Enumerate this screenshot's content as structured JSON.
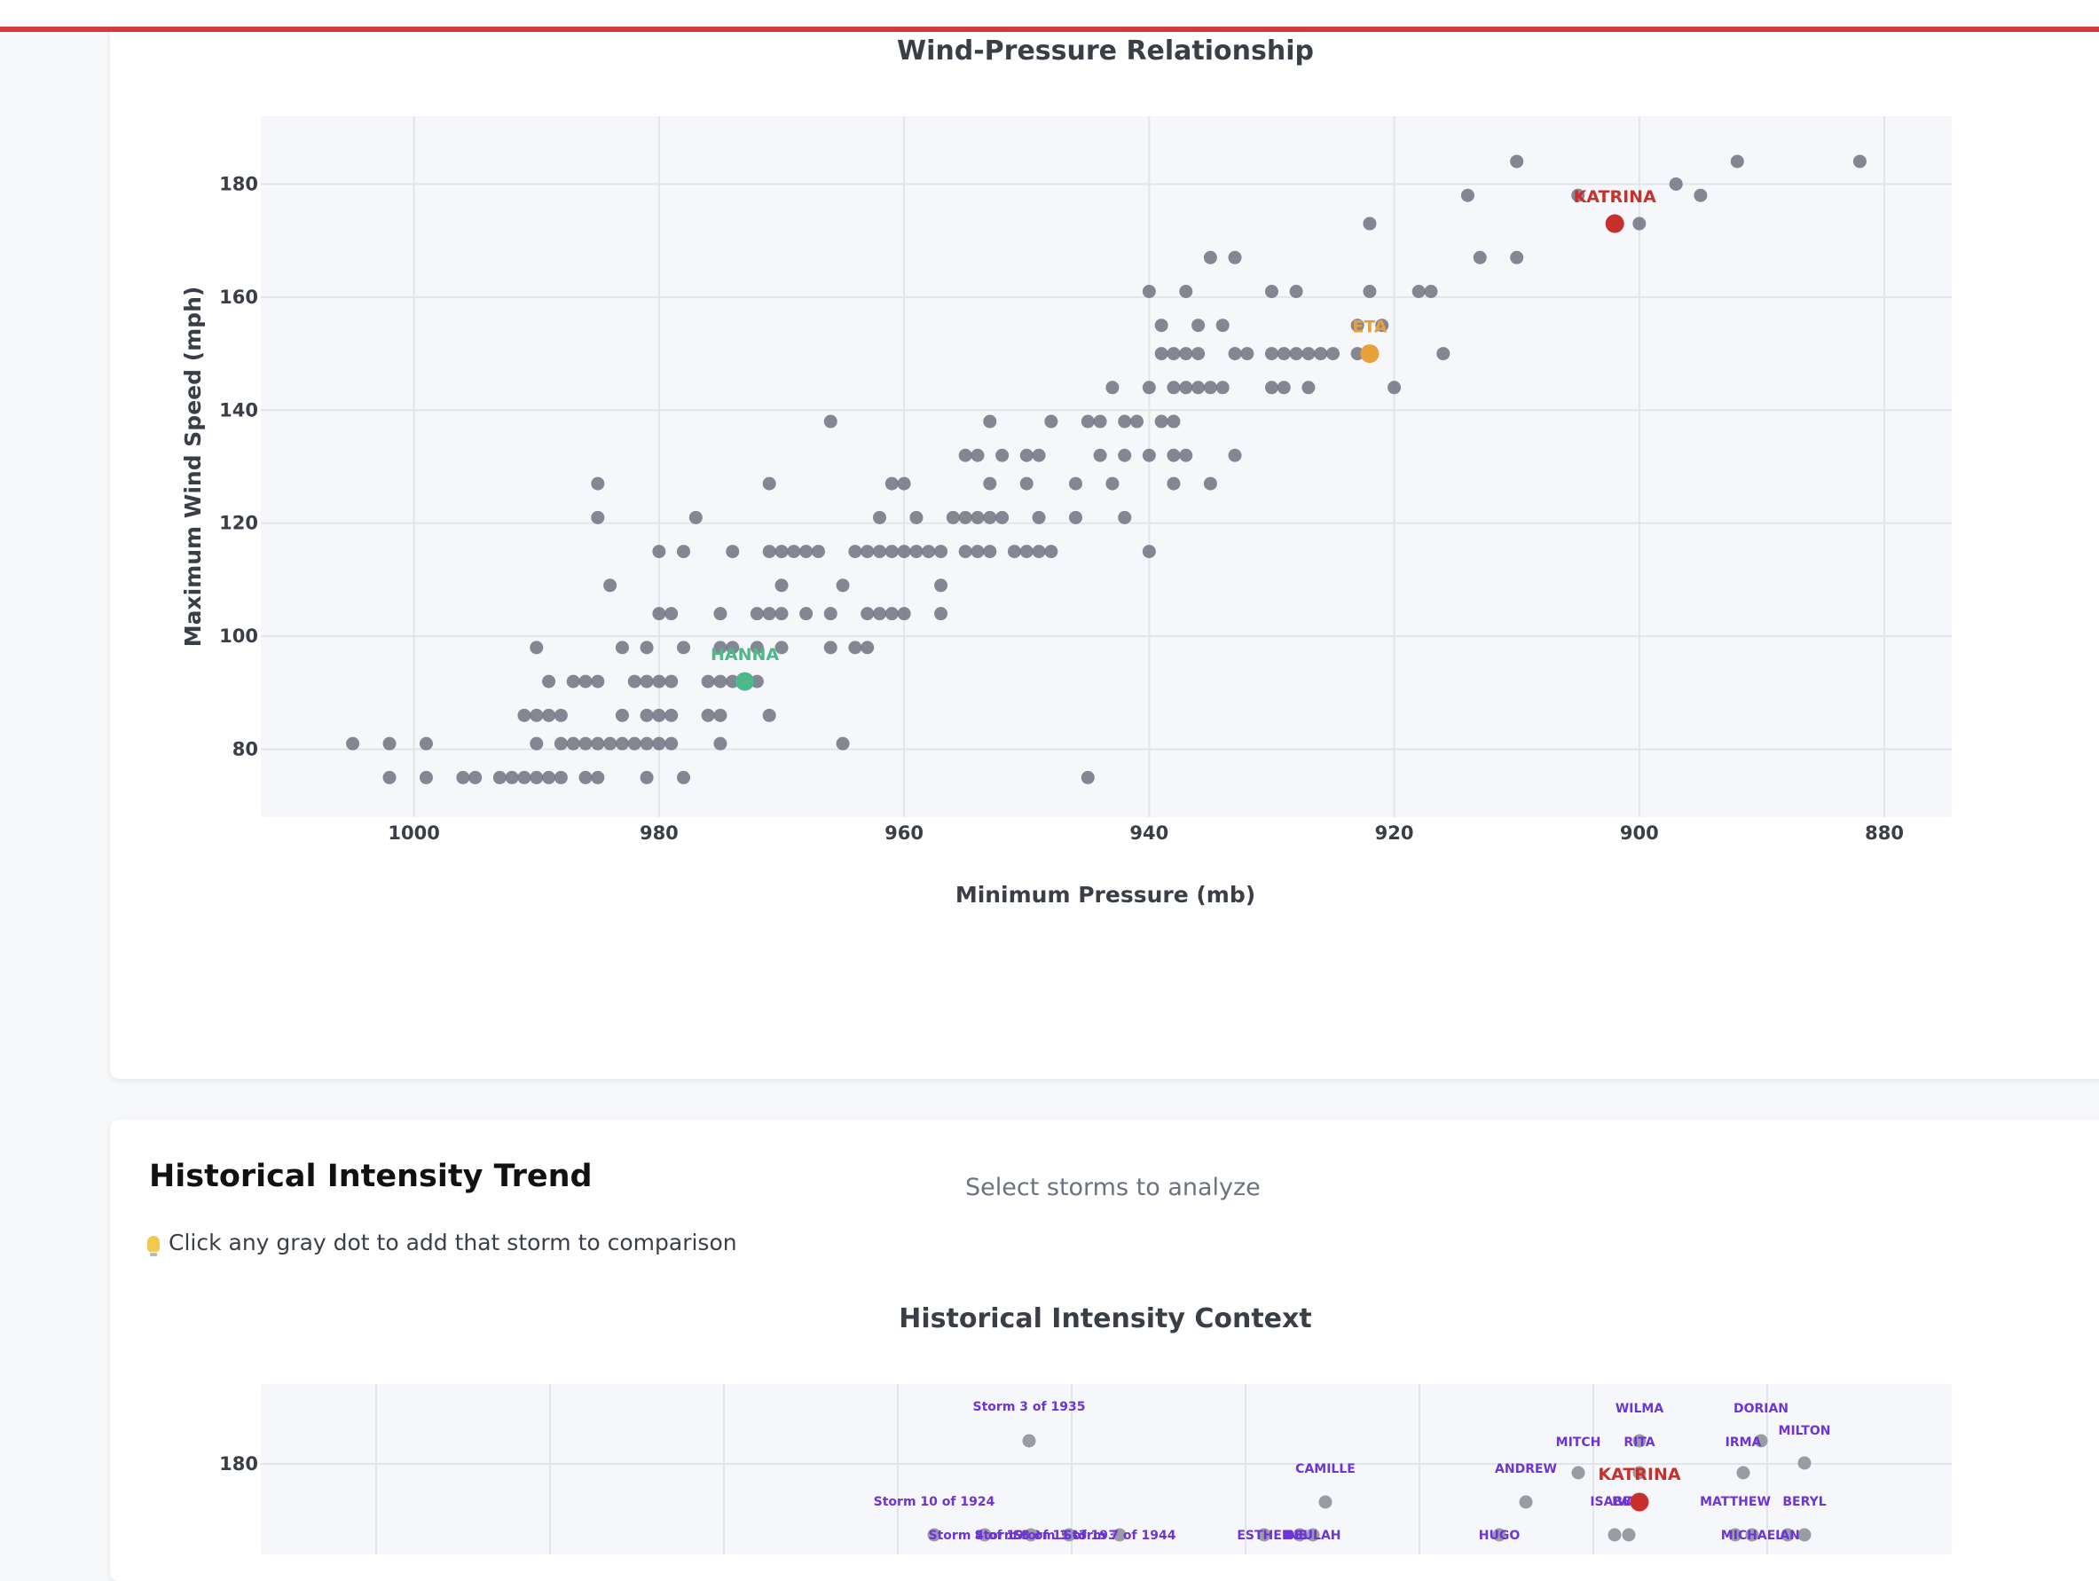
{
  "colors": {
    "accent_red": "#c9302c",
    "orange": "#e8a03a",
    "green": "#4db88a",
    "point": "#6e7280",
    "point_dense": "#3d4350",
    "purple": "#6d35d6"
  },
  "section_history": {
    "title": "Historical Intensity Trend",
    "hint": "Click any gray dot to add that storm to comparison",
    "hint_icon": "lightbulb-icon",
    "select_placeholder": "Select storms to analyze"
  },
  "chart_data": [
    {
      "type": "scatter",
      "title": "Wind-Pressure Relationship",
      "xlabel": "Minimum Pressure (mb)",
      "ylabel": "Maximum Wind Speed (mph)",
      "x_reversed": true,
      "xlim": [
        1012.5,
        874.5
      ],
      "ylim": [
        68,
        192
      ],
      "xticks": [
        1000,
        980,
        960,
        940,
        920,
        900,
        880
      ],
      "yticks": [
        80,
        100,
        120,
        140,
        160,
        180
      ],
      "highlighted": [
        {
          "name": "KATRINA",
          "x": 902,
          "y": 173,
          "color": "#c9302c"
        },
        {
          "name": "ETA",
          "x": 922,
          "y": 150,
          "color": "#e8a03a"
        },
        {
          "name": "HANNA",
          "x": 973,
          "y": 92,
          "color": "#4db88a"
        }
      ],
      "points": [
        [
          1005,
          81
        ],
        [
          1002,
          81
        ],
        [
          999,
          81
        ],
        [
          1002,
          75
        ],
        [
          999,
          75
        ],
        [
          996,
          75
        ],
        [
          995,
          75
        ],
        [
          993,
          75
        ],
        [
          992,
          75
        ],
        [
          991,
          75
        ],
        [
          990,
          75
        ],
        [
          989,
          75
        ],
        [
          988,
          75
        ],
        [
          986,
          75
        ],
        [
          985,
          75
        ],
        [
          981,
          75
        ],
        [
          978,
          75
        ],
        [
          945,
          75
        ],
        [
          990,
          81
        ],
        [
          988,
          81
        ],
        [
          987,
          81
        ],
        [
          986,
          81
        ],
        [
          985,
          81
        ],
        [
          984,
          81
        ],
        [
          983,
          81
        ],
        [
          982,
          81
        ],
        [
          981,
          81
        ],
        [
          980,
          81
        ],
        [
          979,
          81
        ],
        [
          975,
          81
        ],
        [
          965,
          81
        ],
        [
          991,
          86
        ],
        [
          990,
          86
        ],
        [
          989,
          86
        ],
        [
          988,
          86
        ],
        [
          983,
          86
        ],
        [
          981,
          86
        ],
        [
          980,
          86
        ],
        [
          979,
          86
        ],
        [
          976,
          86
        ],
        [
          975,
          86
        ],
        [
          971,
          86
        ],
        [
          989,
          92
        ],
        [
          987,
          92
        ],
        [
          986,
          92
        ],
        [
          985,
          92
        ],
        [
          982,
          92
        ],
        [
          981,
          92
        ],
        [
          980,
          92
        ],
        [
          979,
          92
        ],
        [
          976,
          92
        ],
        [
          975,
          92
        ],
        [
          974,
          92
        ],
        [
          972,
          92
        ],
        [
          990,
          98
        ],
        [
          983,
          98
        ],
        [
          981,
          98
        ],
        [
          978,
          98
        ],
        [
          975,
          98
        ],
        [
          974,
          98
        ],
        [
          972,
          98
        ],
        [
          970,
          98
        ],
        [
          966,
          98
        ],
        [
          964,
          98
        ],
        [
          963,
          98
        ],
        [
          980,
          104
        ],
        [
          979,
          104
        ],
        [
          975,
          104
        ],
        [
          972,
          104
        ],
        [
          971,
          104
        ],
        [
          970,
          104
        ],
        [
          968,
          104
        ],
        [
          966,
          104
        ],
        [
          963,
          104
        ],
        [
          962,
          104
        ],
        [
          961,
          104
        ],
        [
          960,
          104
        ],
        [
          957,
          104
        ],
        [
          984,
          109
        ],
        [
          970,
          109
        ],
        [
          965,
          109
        ],
        [
          957,
          109
        ],
        [
          980,
          115
        ],
        [
          978,
          115
        ],
        [
          974,
          115
        ],
        [
          971,
          115
        ],
        [
          970,
          115
        ],
        [
          969,
          115
        ],
        [
          968,
          115
        ],
        [
          967,
          115
        ],
        [
          964,
          115
        ],
        [
          963,
          115
        ],
        [
          962,
          115
        ],
        [
          961,
          115
        ],
        [
          960,
          115
        ],
        [
          959,
          115
        ],
        [
          958,
          115
        ],
        [
          957,
          115
        ],
        [
          955,
          115
        ],
        [
          954,
          115
        ],
        [
          953,
          115
        ],
        [
          951,
          115
        ],
        [
          950,
          115
        ],
        [
          949,
          115
        ],
        [
          948,
          115
        ],
        [
          940,
          115
        ],
        [
          985,
          121
        ],
        [
          977,
          121
        ],
        [
          962,
          121
        ],
        [
          959,
          121
        ],
        [
          956,
          121
        ],
        [
          955,
          121
        ],
        [
          954,
          121
        ],
        [
          953,
          121
        ],
        [
          952,
          121
        ],
        [
          949,
          121
        ],
        [
          946,
          121
        ],
        [
          942,
          121
        ],
        [
          985,
          127
        ],
        [
          971,
          127
        ],
        [
          961,
          127
        ],
        [
          960,
          127
        ],
        [
          953,
          127
        ],
        [
          950,
          127
        ],
        [
          946,
          127
        ],
        [
          943,
          127
        ],
        [
          938,
          127
        ],
        [
          935,
          127
        ],
        [
          955,
          132
        ],
        [
          954,
          132
        ],
        [
          952,
          132
        ],
        [
          950,
          132
        ],
        [
          949,
          132
        ],
        [
          944,
          132
        ],
        [
          942,
          132
        ],
        [
          940,
          132
        ],
        [
          938,
          132
        ],
        [
          937,
          132
        ],
        [
          933,
          132
        ],
        [
          966,
          138
        ],
        [
          953,
          138
        ],
        [
          948,
          138
        ],
        [
          945,
          138
        ],
        [
          944,
          138
        ],
        [
          942,
          138
        ],
        [
          941,
          138
        ],
        [
          939,
          138
        ],
        [
          938,
          138
        ],
        [
          943,
          144
        ],
        [
          940,
          144
        ],
        [
          938,
          144
        ],
        [
          937,
          144
        ],
        [
          936,
          144
        ],
        [
          935,
          144
        ],
        [
          934,
          144
        ],
        [
          930,
          144
        ],
        [
          929,
          144
        ],
        [
          927,
          144
        ],
        [
          920,
          144
        ],
        [
          939,
          150
        ],
        [
          938,
          150
        ],
        [
          937,
          150
        ],
        [
          936,
          150
        ],
        [
          933,
          150
        ],
        [
          932,
          150
        ],
        [
          930,
          150
        ],
        [
          929,
          150
        ],
        [
          928,
          150
        ],
        [
          927,
          150
        ],
        [
          926,
          150
        ],
        [
          925,
          150
        ],
        [
          923,
          150
        ],
        [
          922,
          150
        ],
        [
          916,
          150
        ],
        [
          939,
          155
        ],
        [
          936,
          155
        ],
        [
          934,
          155
        ],
        [
          923,
          155
        ],
        [
          921,
          155
        ],
        [
          940,
          161
        ],
        [
          937,
          161
        ],
        [
          930,
          161
        ],
        [
          928,
          161
        ],
        [
          922,
          161
        ],
        [
          918,
          161
        ],
        [
          917,
          161
        ],
        [
          935,
          167
        ],
        [
          933,
          167
        ],
        [
          913,
          167
        ],
        [
          910,
          167
        ],
        [
          922,
          173
        ],
        [
          900,
          173
        ],
        [
          914,
          178
        ],
        [
          905,
          178
        ],
        [
          895,
          178
        ],
        [
          897,
          180
        ],
        [
          910,
          184
        ],
        [
          892,
          184
        ],
        [
          882,
          184
        ]
      ]
    },
    {
      "type": "scatter",
      "title": "Historical Intensity Context",
      "yticks": [
        180
      ],
      "highlighted": [
        {
          "name": "KATRINA",
          "color": "#c9302c"
        }
      ],
      "points": [
        {
          "name": "Storm 3 of 1935"
        },
        {
          "name": "Storm 10 of 1924"
        },
        {
          "name": "Storm 4 of 1932"
        },
        {
          "name": "Storm 3 of 1933"
        },
        {
          "name": "Storm 3 of 1937"
        },
        {
          "name": "Storm 7 of 1944"
        },
        {
          "name": "CAMILLE"
        },
        {
          "name": "ESTHER"
        },
        {
          "name": "INEZ"
        },
        {
          "name": "BEULAH"
        },
        {
          "name": "ANDREW"
        },
        {
          "name": "HUGO"
        },
        {
          "name": "MITCH"
        },
        {
          "name": "WILMA"
        },
        {
          "name": "RITA"
        },
        {
          "name": "ISABEL"
        },
        {
          "name": "IVAN"
        },
        {
          "name": "DORIAN"
        },
        {
          "name": "IRMA"
        },
        {
          "name": "MILTON"
        },
        {
          "name": "MATTHEW"
        },
        {
          "name": "BERYL"
        },
        {
          "name": "MICHAEL"
        },
        {
          "name": "IAN"
        }
      ]
    }
  ]
}
